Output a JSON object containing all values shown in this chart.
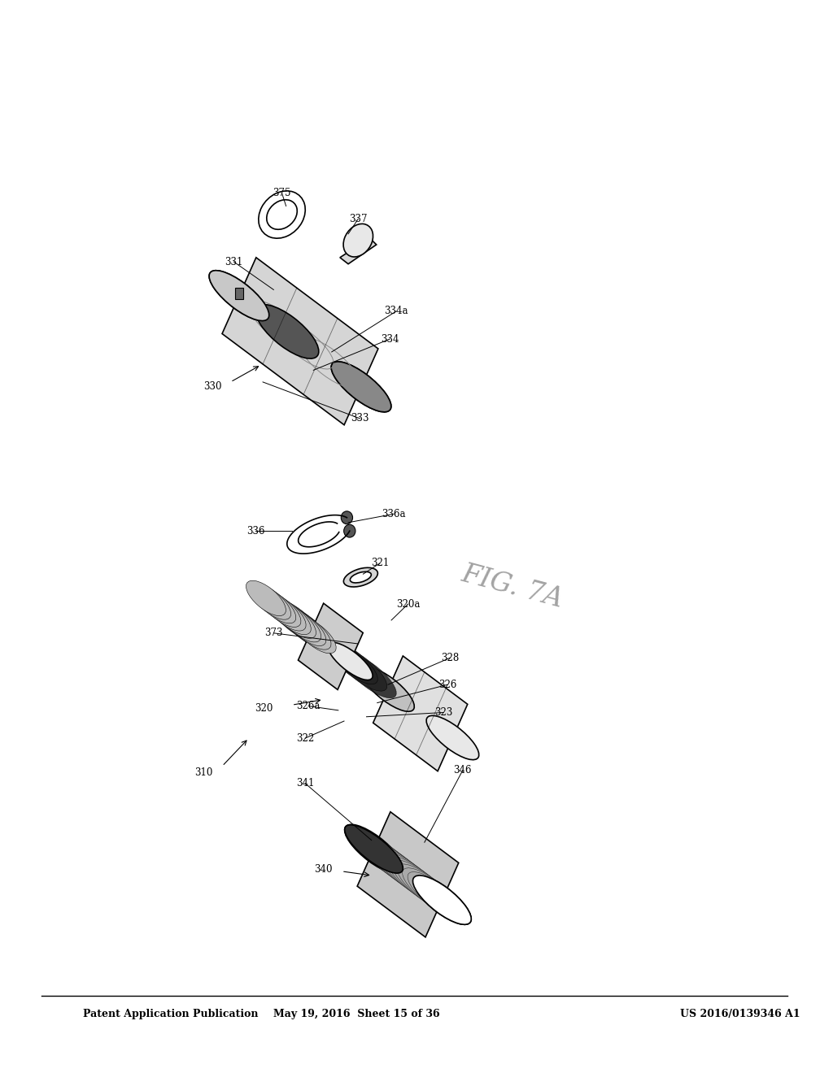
{
  "bg_color": "#ffffff",
  "header_left": "Patent Application Publication",
  "header_mid": "May 19, 2016  Sheet 15 of 36",
  "header_right": "US 2016/0139346 A1",
  "fig_label": "FIG. 7A",
  "label_fs": 8.5
}
